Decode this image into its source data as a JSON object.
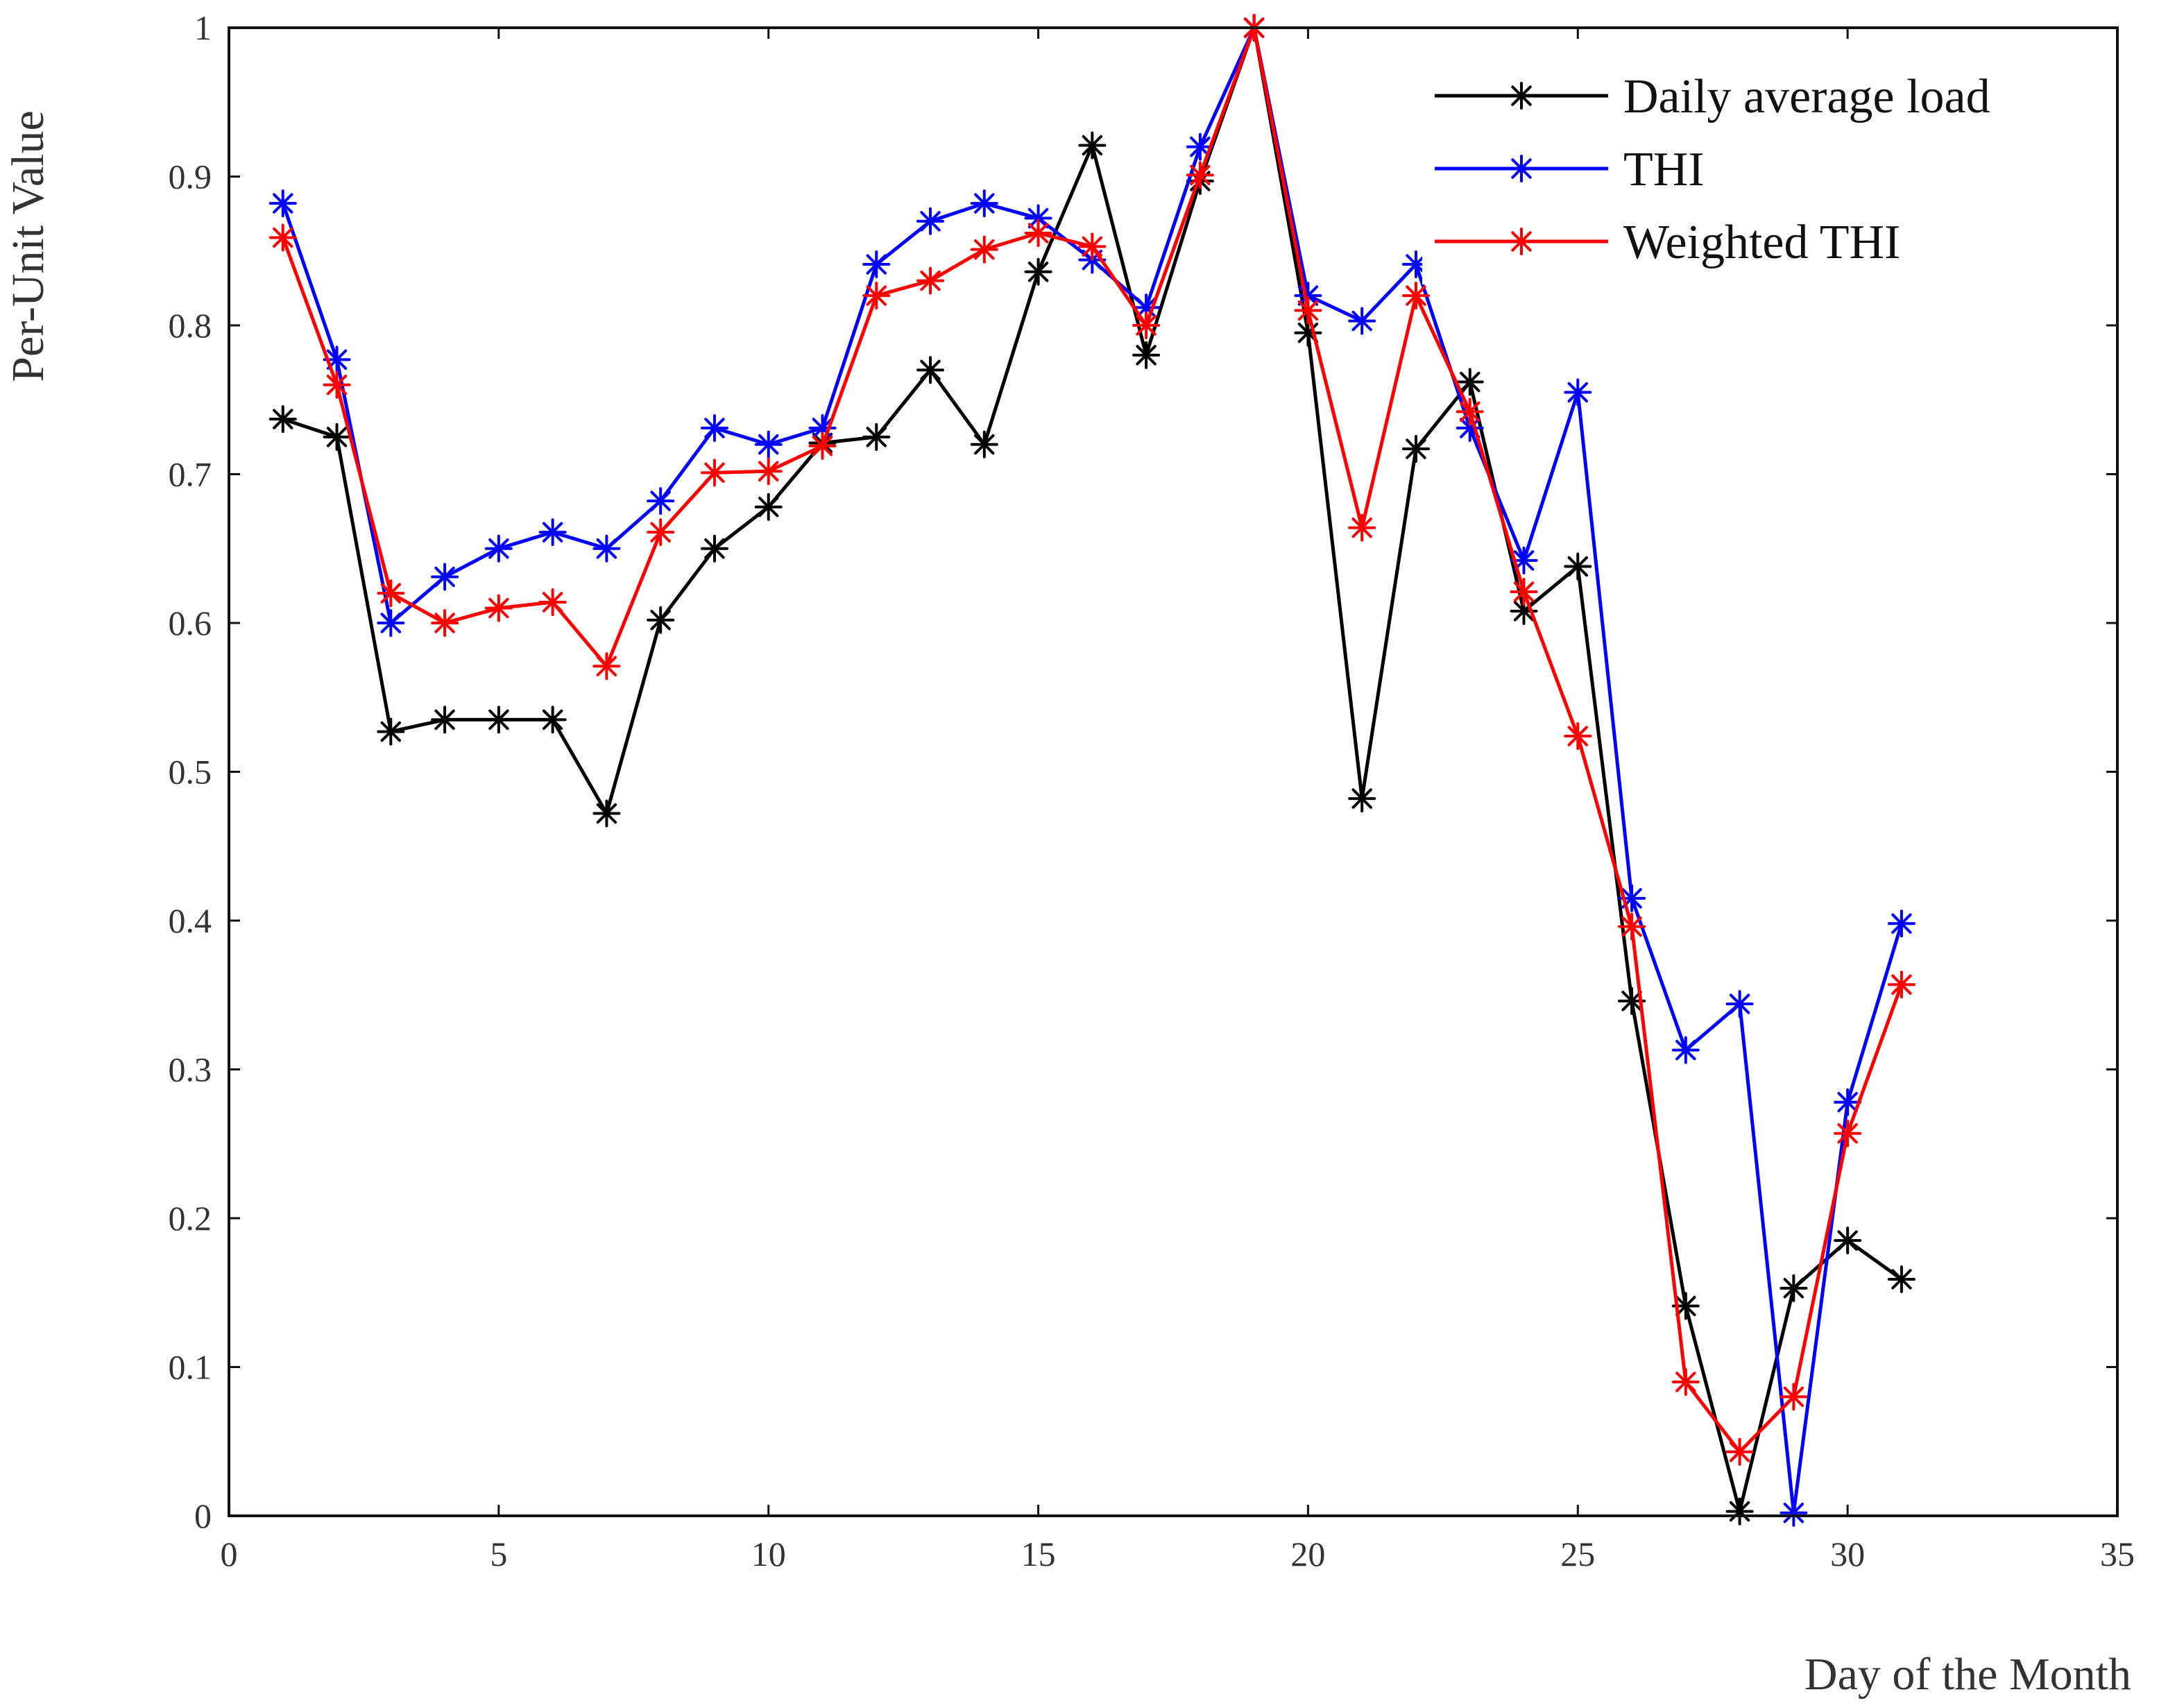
{
  "chart_data": {
    "type": "line",
    "title": "",
    "xlabel": "Day of the Month",
    "ylabel": "Per-Unit Value",
    "xlim": [
      0,
      35
    ],
    "ylim": [
      0,
      1
    ],
    "xticks": [
      0,
      5,
      10,
      15,
      20,
      25,
      30,
      35
    ],
    "yticks": [
      0,
      0.1,
      0.2,
      0.3,
      0.4,
      0.5,
      0.6,
      0.7,
      0.8,
      0.9,
      1
    ],
    "grid": false,
    "legend_position": "top-right",
    "x": [
      1,
      2,
      3,
      4,
      5,
      6,
      7,
      8,
      9,
      10,
      11,
      12,
      13,
      14,
      15,
      16,
      17,
      18,
      19,
      20,
      21,
      22,
      23,
      24,
      25,
      26,
      27,
      28,
      29,
      30,
      31
    ],
    "series": [
      {
        "name": "Daily average load",
        "color": "#000000",
        "marker": "asterisk",
        "values": [
          0.737,
          0.725,
          0.527,
          0.535,
          0.535,
          0.535,
          0.472,
          0.602,
          0.65,
          0.678,
          0.721,
          0.725,
          0.77,
          0.72,
          0.836,
          0.921,
          0.78,
          0.897,
          1.0,
          0.795,
          0.482,
          0.717,
          0.762,
          0.608,
          0.638,
          0.346,
          0.141,
          0.003,
          0.153,
          0.185,
          0.159
        ]
      },
      {
        "name": "THI",
        "color": "#0000ff",
        "marker": "asterisk",
        "values": [
          0.882,
          0.777,
          0.6,
          0.631,
          0.65,
          0.661,
          0.65,
          0.682,
          0.731,
          0.72,
          0.731,
          0.841,
          0.87,
          0.882,
          0.872,
          0.844,
          0.812,
          0.92,
          1.0,
          0.82,
          0.803,
          0.841,
          0.731,
          0.642,
          0.755,
          0.415,
          0.313,
          0.344,
          0.002,
          0.278,
          0.398
        ]
      },
      {
        "name": "Weighted THI",
        "color": "#ff0000",
        "marker": "asterisk",
        "values": [
          0.859,
          0.76,
          0.62,
          0.6,
          0.61,
          0.614,
          0.571,
          0.661,
          0.701,
          0.702,
          0.719,
          0.82,
          0.83,
          0.851,
          0.862,
          0.853,
          0.8,
          0.901,
          1.0,
          0.81,
          0.664,
          0.82,
          0.742,
          0.621,
          0.524,
          0.396,
          0.09,
          0.043,
          0.08,
          0.257,
          0.357
        ]
      }
    ]
  }
}
